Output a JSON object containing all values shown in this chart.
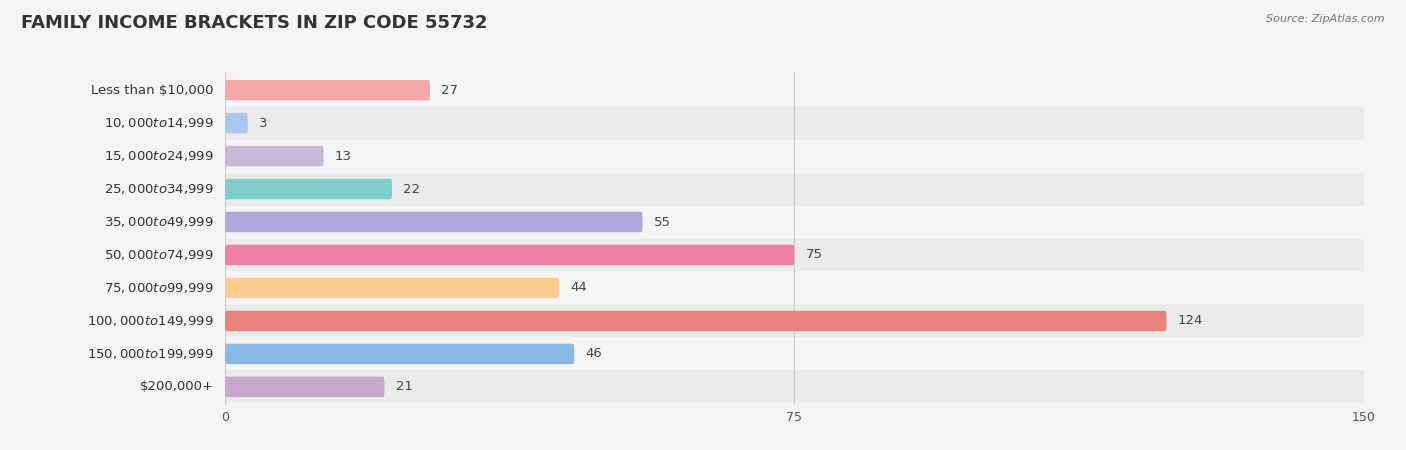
{
  "title": "FAMILY INCOME BRACKETS IN ZIP CODE 55732",
  "source": "Source: ZipAtlas.com",
  "categories": [
    "Less than $10,000",
    "$10,000 to $14,999",
    "$15,000 to $24,999",
    "$25,000 to $34,999",
    "$35,000 to $49,999",
    "$50,000 to $74,999",
    "$75,000 to $99,999",
    "$100,000 to $149,999",
    "$150,000 to $199,999",
    "$200,000+"
  ],
  "values": [
    27,
    3,
    13,
    22,
    55,
    75,
    44,
    124,
    46,
    21
  ],
  "bar_colors": [
    "#F4A9A8",
    "#A8C8F0",
    "#C9B8D8",
    "#7ECECA",
    "#B0A8D8",
    "#F080A8",
    "#FCCB8F",
    "#E8837A",
    "#88B8E8",
    "#C8A8CC"
  ],
  "xlim": [
    0,
    150
  ],
  "xticks": [
    0,
    75,
    150
  ],
  "bar_height": 0.62,
  "background_color": "#f5f5f5",
  "title_fontsize": 13,
  "label_fontsize": 9.5,
  "value_fontsize": 9.5
}
